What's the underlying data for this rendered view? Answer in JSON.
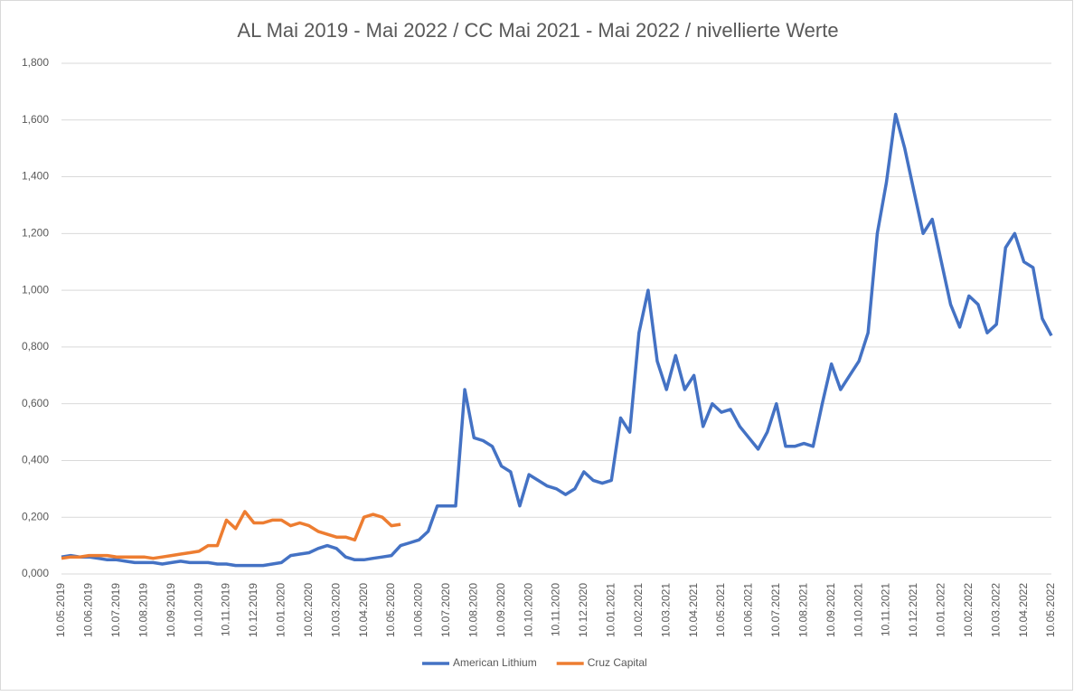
{
  "chart_data": {
    "type": "line",
    "title": "AL Mai 2019 - Mai 2022 / CC Mai 2021 - Mai 2022 / nivellierte Werte",
    "categories": [
      "10.05.2019",
      null,
      null,
      "10.06.2019",
      null,
      null,
      "10.07.2019",
      null,
      null,
      "10.08.2019",
      null,
      null,
      "10.09.2019",
      null,
      null,
      "10.10.2019",
      null,
      null,
      "10.11.2019",
      null,
      null,
      "10.12.2019",
      null,
      null,
      "10.01.2020",
      null,
      null,
      "10.02.2020",
      null,
      null,
      "10.03.2020",
      null,
      null,
      "10.04.2020",
      null,
      null,
      "10.05.2020",
      null,
      null,
      "10.06.2020",
      null,
      null,
      "10.07.2020",
      null,
      null,
      "10.08.2020",
      null,
      null,
      "10.09.2020",
      null,
      null,
      "10.10.2020",
      null,
      null,
      "10.11.2020",
      null,
      null,
      "10.12.2020",
      null,
      null,
      "10.01.2021",
      null,
      null,
      "10.02.2021",
      null,
      null,
      "10.03.2021",
      null,
      null,
      "10.04.2021",
      null,
      null,
      "10.05.2021",
      null,
      null,
      "10.06.2021",
      null,
      null,
      "10.07.2021",
      null,
      null,
      "10.08.2021",
      null,
      null,
      "10.09.2021",
      null,
      null,
      "10.10.2021",
      null,
      null,
      "10.11.2021",
      null,
      null,
      "10.12.2021",
      null,
      null,
      "10.01.2022",
      null,
      null,
      "10.02.2022",
      null,
      null,
      "10.03.2022",
      null,
      null,
      "10.04.2022",
      null,
      null,
      "10.05.2022"
    ],
    "series": [
      {
        "name": "American Lithium",
        "color": "#4472c4",
        "values": [
          0.06,
          0.065,
          0.06,
          0.06,
          0.055,
          0.05,
          0.05,
          0.045,
          0.04,
          0.04,
          0.04,
          0.035,
          0.04,
          0.045,
          0.04,
          0.04,
          0.04,
          0.035,
          0.035,
          0.03,
          0.03,
          0.03,
          0.03,
          0.035,
          0.04,
          0.065,
          0.07,
          0.075,
          0.09,
          0.1,
          0.09,
          0.06,
          0.05,
          0.05,
          0.055,
          0.06,
          0.065,
          0.1,
          0.11,
          0.12,
          0.15,
          0.24,
          0.24,
          0.24,
          0.65,
          0.48,
          0.47,
          0.45,
          0.38,
          0.36,
          0.24,
          0.35,
          0.33,
          0.31,
          0.3,
          0.28,
          0.3,
          0.36,
          0.33,
          0.32,
          0.33,
          0.55,
          0.5,
          0.85,
          1.0,
          0.75,
          0.65,
          0.77,
          0.65,
          0.7,
          0.52,
          0.6,
          0.57,
          0.58,
          0.52,
          0.48,
          0.44,
          0.5,
          0.6,
          0.45,
          0.45,
          0.46,
          0.45,
          0.6,
          0.74,
          0.65,
          0.7,
          0.75,
          0.85,
          1.2,
          1.38,
          1.62,
          1.5,
          1.35,
          1.2,
          1.25,
          1.1,
          0.95,
          0.87,
          0.98,
          0.95,
          0.85,
          0.88,
          1.15,
          1.2,
          1.1,
          1.08,
          0.9,
          0.84
        ]
      },
      {
        "name": "Cruz Capital",
        "color": "#ed7d31",
        "values": [
          0.055,
          0.06,
          0.06,
          0.065,
          0.065,
          0.065,
          0.06,
          0.06,
          0.06,
          0.06,
          0.055,
          0.06,
          0.065,
          0.07,
          0.075,
          0.08,
          0.1,
          0.1,
          0.19,
          0.16,
          0.22,
          0.18,
          0.18,
          0.19,
          0.19,
          0.17,
          0.18,
          0.17,
          0.15,
          0.14,
          0.13,
          0.13,
          0.12,
          0.2,
          0.21,
          0.2,
          0.17,
          0.175,
          null,
          null,
          null,
          null,
          null,
          null,
          null,
          null,
          null,
          null,
          null,
          null,
          null,
          null,
          null,
          null,
          null,
          null,
          null,
          null,
          null,
          null,
          null,
          null,
          null,
          null,
          null,
          null,
          null,
          null,
          null,
          null,
          null,
          null,
          null,
          null,
          null,
          null,
          null,
          null,
          null,
          null,
          null,
          null,
          null,
          null,
          null,
          null,
          null,
          null,
          null,
          null,
          null,
          null,
          null,
          null,
          null,
          null,
          null,
          null,
          null,
          null,
          null,
          null,
          null,
          null,
          null,
          null,
          null,
          null,
          null
        ]
      }
    ],
    "ylim": [
      0,
      1.8
    ],
    "yticks": [
      {
        "value": 0,
        "label": "0,000"
      },
      {
        "value": 0.2,
        "label": "0,200"
      },
      {
        "value": 0.4,
        "label": "0,400"
      },
      {
        "value": 0.6,
        "label": "0,600"
      },
      {
        "value": 0.8,
        "label": "0,800"
      },
      {
        "value": 1.0,
        "label": "1,000"
      },
      {
        "value": 1.2,
        "label": "1,200"
      },
      {
        "value": 1.4,
        "label": "1,400"
      },
      {
        "value": 1.6,
        "label": "1,600"
      },
      {
        "value": 1.8,
        "label": "1,800"
      }
    ],
    "grid": true,
    "legend": "bottom"
  }
}
